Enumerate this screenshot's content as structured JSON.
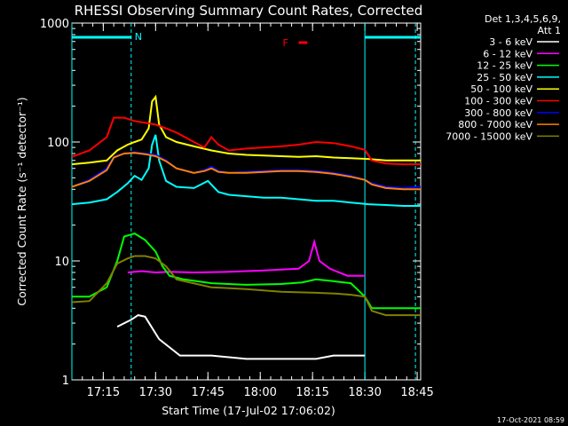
{
  "chart_data": {
    "type": "line",
    "title": "RHESSI Observing Summary Count Rates, Corrected",
    "xlabel": "Start Time (17-Jul-02 17:06:02)",
    "ylabel": "Corrected Count Rate (s⁻¹ detector⁻¹)",
    "y_scale": "log",
    "ylim": [
      1,
      1000
    ],
    "xlim_minutes": [
      0,
      100
    ],
    "x_ticks": [
      {
        "label": "17:15",
        "minute": 9
      },
      {
        "label": "17:30",
        "minute": 24
      },
      {
        "label": "17:45",
        "minute": 39
      },
      {
        "label": "18:00",
        "minute": 54
      },
      {
        "label": "18:15",
        "minute": 69
      },
      {
        "label": "18:30",
        "minute": 84
      },
      {
        "label": "18:45",
        "minute": 99
      }
    ],
    "y_ticks": [
      {
        "label": "1",
        "value": 1
      },
      {
        "label": "10",
        "value": 10
      },
      {
        "label": "100",
        "value": 100
      },
      {
        "label": "1000",
        "value": 1000
      }
    ],
    "legend": {
      "header": [
        "Det 1,3,4,5,6,9,",
        "Att 1"
      ],
      "placement": "right"
    },
    "series": [
      {
        "name": "3 - 6 keV",
        "color": "#ffffff",
        "x": [
          13,
          17,
          19,
          21,
          25,
          31,
          40,
          50,
          60,
          70,
          75,
          84
        ],
        "y": [
          2.8,
          3.2,
          3.5,
          3.4,
          2.2,
          1.6,
          1.6,
          1.5,
          1.5,
          1.5,
          1.6,
          1.6
        ]
      },
      {
        "name": "6 - 12 keV",
        "color": "#ff00ff",
        "x": [
          16,
          20,
          24,
          28,
          35,
          45,
          55,
          65,
          68,
          69.5,
          71,
          74,
          79,
          84
        ],
        "y": [
          8.0,
          8.2,
          8.0,
          8.1,
          8.0,
          8.1,
          8.3,
          8.6,
          10.0,
          14.5,
          10.0,
          8.6,
          7.5,
          7.5
        ]
      },
      {
        "name": "12 - 25 keV",
        "color": "#00ff00",
        "x": [
          0,
          5,
          10,
          13,
          15,
          18,
          21,
          24,
          26,
          28,
          32,
          40,
          50,
          60,
          66,
          70,
          74,
          78,
          80,
          84,
          86,
          100
        ],
        "y": [
          5,
          5,
          6,
          10,
          16,
          17,
          15,
          12,
          9,
          7.5,
          7,
          6.5,
          6.3,
          6.4,
          6.6,
          7,
          6.8,
          6.6,
          6.5,
          5,
          4,
          4
        ]
      },
      {
        "name": "25 - 50 keV",
        "color": "#00ffff",
        "x": [
          0,
          5,
          10,
          13,
          16,
          18,
          20,
          22,
          23,
          24,
          25,
          27,
          30,
          35,
          39,
          42,
          45,
          50,
          55,
          60,
          65,
          70,
          75,
          80,
          85,
          90,
          95,
          100
        ],
        "y": [
          30,
          31,
          33,
          38,
          45,
          52,
          48,
          60,
          95,
          115,
          70,
          47,
          42,
          41,
          47,
          38,
          36,
          35,
          34,
          34,
          33,
          32,
          32,
          31,
          30,
          29.5,
          29,
          29
        ]
      },
      {
        "name": "50 - 100 keV",
        "color": "#ffff00",
        "x": [
          0,
          5,
          10,
          13,
          16,
          18,
          20,
          22,
          23,
          24,
          25,
          27,
          30,
          35,
          40,
          45,
          50,
          55,
          60,
          65,
          70,
          75,
          80,
          85,
          90,
          95,
          100
        ],
        "y": [
          65,
          67,
          70,
          85,
          95,
          100,
          105,
          130,
          220,
          240,
          140,
          110,
          100,
          92,
          85,
          80,
          78,
          77,
          76,
          75,
          76,
          74,
          73,
          72,
          70,
          70,
          70
        ]
      },
      {
        "name": "100 - 300 keV",
        "color": "#ff0000",
        "x": [
          0,
          5,
          10,
          12,
          15,
          18,
          21,
          24,
          27,
          30,
          35,
          38,
          40,
          42,
          45,
          50,
          55,
          60,
          65,
          70,
          75,
          80,
          84,
          86,
          90,
          95,
          100
        ],
        "y": [
          75,
          85,
          110,
          160,
          160,
          150,
          145,
          140,
          130,
          120,
          100,
          90,
          110,
          95,
          85,
          88,
          90,
          92,
          95,
          100,
          98,
          92,
          86,
          70,
          66,
          65,
          65
        ]
      },
      {
        "name": "300 - 800 keV",
        "color": "#0000ff",
        "x": [
          0,
          5,
          10,
          12,
          15,
          18,
          21,
          24,
          27,
          30,
          35,
          38,
          40,
          42,
          45,
          50,
          55,
          60,
          65,
          70,
          75,
          80,
          84,
          86,
          90,
          95,
          100
        ],
        "y": [
          42,
          48,
          60,
          75,
          80,
          82,
          80,
          78,
          70,
          60,
          55,
          58,
          62,
          57,
          55,
          56,
          57,
          58,
          58,
          57,
          55,
          52,
          48,
          45,
          42,
          41,
          42
        ]
      },
      {
        "name": "800 - 7000 keV",
        "color": "#ff8000",
        "x": [
          0,
          5,
          10,
          12,
          15,
          18,
          21,
          24,
          27,
          30,
          35,
          38,
          40,
          42,
          45,
          50,
          55,
          60,
          65,
          70,
          75,
          80,
          84,
          86,
          90,
          95,
          100
        ],
        "y": [
          42,
          47,
          58,
          74,
          80,
          81,
          79,
          76,
          69,
          60,
          55,
          57,
          60,
          56,
          55,
          55,
          56,
          57,
          57,
          56,
          54,
          51,
          48,
          44,
          41,
          40,
          40
        ]
      },
      {
        "name": "7000 - 15000 keV",
        "color": "#808000",
        "x": [
          0,
          5,
          10,
          13,
          16,
          18,
          21,
          24,
          27,
          30,
          40,
          50,
          60,
          70,
          76,
          80,
          84,
          86,
          90,
          100
        ],
        "y": [
          4.5,
          4.6,
          6.5,
          9.5,
          10.5,
          11,
          11,
          10.5,
          9,
          7,
          6,
          5.8,
          5.5,
          5.4,
          5.3,
          5.2,
          5.0,
          3.8,
          3.5,
          3.5
        ]
      }
    ],
    "annotations": [
      {
        "label": "N",
        "color": "#00ffff",
        "minute": 17
      },
      {
        "label": "F",
        "color": "#ff0000",
        "minute": 64
      }
    ],
    "state_bars": {
      "color": "#00ffff",
      "night_segments_minutes": [
        [
          0,
          17
        ],
        [
          84,
          100
        ]
      ],
      "flare_segment_minutes": [
        65,
        67.5
      ],
      "vertical_lines_minutes": [
        {
          "minute": 0,
          "dashed": false
        },
        {
          "minute": 17,
          "dashed": true
        },
        {
          "minute": 84,
          "dashed": false
        },
        {
          "minute": 98.5,
          "dashed": true
        }
      ]
    }
  },
  "footer": {
    "timestamp": "17-Oct-2021 08:59"
  }
}
